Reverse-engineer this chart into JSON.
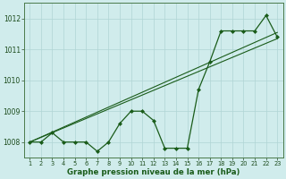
{
  "x": [
    1,
    2,
    3,
    4,
    5,
    6,
    7,
    8,
    9,
    10,
    11,
    12,
    13,
    14,
    15,
    16,
    17,
    18,
    19,
    20,
    21,
    22,
    23
  ],
  "line_data": [
    1008.0,
    1008.0,
    1008.3,
    1008.0,
    1008.0,
    1008.0,
    1007.7,
    1008.0,
    1008.6,
    1009.0,
    1009.0,
    1008.7,
    1007.8,
    1007.8,
    1007.8,
    1009.7,
    1010.6,
    1011.6,
    1011.6,
    1011.6,
    1011.6,
    1012.1,
    1011.4
  ],
  "trend1_x": [
    1,
    23
  ],
  "trend1_y": [
    1008.0,
    1011.55
  ],
  "trend2_x": [
    1,
    23
  ],
  "trend2_y": [
    1008.0,
    1011.35
  ],
  "bg_color": "#d0ecec",
  "line_color": "#1a5c1a",
  "grid_color": "#b0d4d4",
  "xlabel": "Graphe pression niveau de la mer (hPa)",
  "ylim": [
    1007.5,
    1012.5
  ],
  "yticks": [
    1008,
    1009,
    1010,
    1011,
    1012
  ],
  "xticks": [
    1,
    2,
    3,
    4,
    5,
    6,
    7,
    8,
    9,
    10,
    11,
    12,
    13,
    14,
    15,
    16,
    17,
    18,
    19,
    20,
    21,
    22,
    23
  ]
}
